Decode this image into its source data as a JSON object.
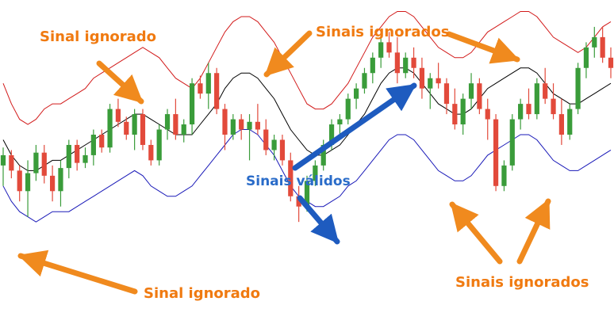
{
  "chart_data": {
    "type": "candlestick",
    "title": "",
    "xlabel": "",
    "ylabel": "",
    "ylim": [
      0,
      100
    ],
    "grid": false,
    "legend": "none",
    "colors": {
      "bullish": "#3a9c3a",
      "bearish": "#e24a3b",
      "upper_band": "#d21a1a",
      "middle_band": "#000000",
      "lower_band": "#1a1ab8",
      "annotation_orange": "#f08a1e",
      "annotation_blue": "#1e5bbf",
      "label_orange": "#f07a10",
      "label_blue": "#2a6cc9"
    },
    "candles": [
      {
        "o": 38,
        "h": 45,
        "l": 30,
        "c": 42
      },
      {
        "o": 42,
        "h": 44,
        "l": 33,
        "c": 36
      },
      {
        "o": 36,
        "h": 38,
        "l": 24,
        "c": 28
      },
      {
        "o": 28,
        "h": 40,
        "l": 18,
        "c": 35
      },
      {
        "o": 35,
        "h": 46,
        "l": 32,
        "c": 43
      },
      {
        "o": 43,
        "h": 46,
        "l": 31,
        "c": 34
      },
      {
        "o": 34,
        "h": 38,
        "l": 24,
        "c": 28
      },
      {
        "o": 28,
        "h": 40,
        "l": 22,
        "c": 37
      },
      {
        "o": 37,
        "h": 48,
        "l": 33,
        "c": 46
      },
      {
        "o": 46,
        "h": 48,
        "l": 36,
        "c": 39
      },
      {
        "o": 39,
        "h": 45,
        "l": 37,
        "c": 42
      },
      {
        "o": 42,
        "h": 52,
        "l": 38,
        "c": 50
      },
      {
        "o": 50,
        "h": 52,
        "l": 43,
        "c": 45
      },
      {
        "o": 45,
        "h": 62,
        "l": 43,
        "c": 60
      },
      {
        "o": 60,
        "h": 64,
        "l": 53,
        "c": 55
      },
      {
        "o": 55,
        "h": 57,
        "l": 48,
        "c": 50
      },
      {
        "o": 50,
        "h": 60,
        "l": 44,
        "c": 58
      },
      {
        "o": 58,
        "h": 60,
        "l": 44,
        "c": 46
      },
      {
        "o": 46,
        "h": 48,
        "l": 38,
        "c": 40
      },
      {
        "o": 40,
        "h": 54,
        "l": 38,
        "c": 52
      },
      {
        "o": 52,
        "h": 60,
        "l": 48,
        "c": 58
      },
      {
        "o": 58,
        "h": 64,
        "l": 48,
        "c": 50
      },
      {
        "o": 50,
        "h": 56,
        "l": 47,
        "c": 54
      },
      {
        "o": 54,
        "h": 72,
        "l": 50,
        "c": 70
      },
      {
        "o": 70,
        "h": 73,
        "l": 64,
        "c": 66
      },
      {
        "o": 66,
        "h": 78,
        "l": 60,
        "c": 74
      },
      {
        "o": 74,
        "h": 76,
        "l": 58,
        "c": 60
      },
      {
        "o": 60,
        "h": 62,
        "l": 44,
        "c": 50
      },
      {
        "o": 50,
        "h": 58,
        "l": 48,
        "c": 56
      },
      {
        "o": 56,
        "h": 58,
        "l": 48,
        "c": 52
      },
      {
        "o": 52,
        "h": 58,
        "l": 40,
        "c": 55
      },
      {
        "o": 55,
        "h": 62,
        "l": 50,
        "c": 52
      },
      {
        "o": 52,
        "h": 56,
        "l": 42,
        "c": 44
      },
      {
        "o": 44,
        "h": 50,
        "l": 40,
        "c": 48
      },
      {
        "o": 48,
        "h": 50,
        "l": 38,
        "c": 40
      },
      {
        "o": 40,
        "h": 43,
        "l": 24,
        "c": 26
      },
      {
        "o": 26,
        "h": 30,
        "l": 16,
        "c": 22
      },
      {
        "o": 22,
        "h": 34,
        "l": 20,
        "c": 32
      },
      {
        "o": 32,
        "h": 40,
        "l": 30,
        "c": 38
      },
      {
        "o": 38,
        "h": 48,
        "l": 36,
        "c": 46
      },
      {
        "o": 46,
        "h": 56,
        "l": 44,
        "c": 54
      },
      {
        "o": 54,
        "h": 58,
        "l": 50,
        "c": 56
      },
      {
        "o": 56,
        "h": 66,
        "l": 54,
        "c": 64
      },
      {
        "o": 64,
        "h": 70,
        "l": 60,
        "c": 68
      },
      {
        "o": 68,
        "h": 76,
        "l": 66,
        "c": 74
      },
      {
        "o": 74,
        "h": 82,
        "l": 70,
        "c": 80
      },
      {
        "o": 80,
        "h": 88,
        "l": 76,
        "c": 86
      },
      {
        "o": 86,
        "h": 90,
        "l": 80,
        "c": 82
      },
      {
        "o": 82,
        "h": 88,
        "l": 70,
        "c": 74
      },
      {
        "o": 74,
        "h": 82,
        "l": 72,
        "c": 80
      },
      {
        "o": 80,
        "h": 84,
        "l": 72,
        "c": 76
      },
      {
        "o": 76,
        "h": 80,
        "l": 64,
        "c": 68
      },
      {
        "o": 68,
        "h": 74,
        "l": 60,
        "c": 72
      },
      {
        "o": 72,
        "h": 78,
        "l": 68,
        "c": 70
      },
      {
        "o": 70,
        "h": 72,
        "l": 58,
        "c": 62
      },
      {
        "o": 62,
        "h": 68,
        "l": 52,
        "c": 54
      },
      {
        "o": 54,
        "h": 66,
        "l": 50,
        "c": 64
      },
      {
        "o": 64,
        "h": 74,
        "l": 60,
        "c": 70
      },
      {
        "o": 70,
        "h": 72,
        "l": 58,
        "c": 60
      },
      {
        "o": 60,
        "h": 64,
        "l": 48,
        "c": 56
      },
      {
        "o": 56,
        "h": 58,
        "l": 28,
        "c": 30
      },
      {
        "o": 30,
        "h": 40,
        "l": 28,
        "c": 38
      },
      {
        "o": 38,
        "h": 58,
        "l": 36,
        "c": 56
      },
      {
        "o": 56,
        "h": 64,
        "l": 52,
        "c": 62
      },
      {
        "o": 62,
        "h": 68,
        "l": 56,
        "c": 58
      },
      {
        "o": 58,
        "h": 72,
        "l": 56,
        "c": 70
      },
      {
        "o": 70,
        "h": 76,
        "l": 62,
        "c": 64
      },
      {
        "o": 64,
        "h": 70,
        "l": 56,
        "c": 58
      },
      {
        "o": 58,
        "h": 64,
        "l": 46,
        "c": 50
      },
      {
        "o": 50,
        "h": 62,
        "l": 48,
        "c": 60
      },
      {
        "o": 60,
        "h": 78,
        "l": 58,
        "c": 76
      },
      {
        "o": 76,
        "h": 86,
        "l": 72,
        "c": 84
      },
      {
        "o": 84,
        "h": 92,
        "l": 80,
        "c": 88
      },
      {
        "o": 88,
        "h": 92,
        "l": 78,
        "c": 80
      },
      {
        "o": 80,
        "h": 84,
        "l": 72,
        "c": 76
      }
    ],
    "upper_band": [
      70,
      62,
      56,
      54,
      56,
      60,
      62,
      62,
      64,
      66,
      68,
      72,
      74,
      76,
      78,
      80,
      82,
      84,
      82,
      80,
      76,
      72,
      70,
      68,
      72,
      78,
      84,
      90,
      94,
      96,
      96,
      94,
      90,
      86,
      80,
      74,
      68,
      62,
      60,
      60,
      62,
      66,
      70,
      76,
      82,
      88,
      92,
      96,
      98,
      98,
      96,
      92,
      88,
      84,
      82,
      80,
      80,
      82,
      86,
      90,
      92,
      94,
      96,
      98,
      98,
      96,
      92,
      88,
      86,
      84,
      82,
      84,
      88,
      92,
      94
    ],
    "middle_band": [
      48,
      42,
      38,
      36,
      36,
      38,
      40,
      40,
      42,
      44,
      46,
      48,
      50,
      52,
      54,
      56,
      58,
      58,
      56,
      54,
      52,
      50,
      50,
      50,
      54,
      58,
      62,
      68,
      72,
      74,
      74,
      72,
      68,
      64,
      58,
      52,
      48,
      44,
      42,
      42,
      44,
      46,
      50,
      54,
      58,
      64,
      70,
      74,
      76,
      76,
      74,
      70,
      66,
      62,
      60,
      58,
      58,
      60,
      64,
      68,
      70,
      72,
      74,
      76,
      76,
      74,
      70,
      66,
      64,
      62,
      62,
      64,
      66,
      68,
      70
    ],
    "lower_band": [
      30,
      24,
      20,
      18,
      16,
      18,
      20,
      20,
      20,
      22,
      24,
      26,
      28,
      30,
      32,
      34,
      36,
      34,
      30,
      28,
      26,
      26,
      28,
      30,
      34,
      38,
      42,
      46,
      50,
      52,
      52,
      50,
      46,
      42,
      36,
      30,
      26,
      24,
      22,
      22,
      24,
      26,
      30,
      32,
      36,
      40,
      44,
      48,
      50,
      50,
      48,
      44,
      40,
      36,
      34,
      32,
      32,
      34,
      38,
      42,
      44,
      46,
      48,
      50,
      50,
      48,
      44,
      40,
      38,
      36,
      36,
      38,
      40,
      42,
      44
    ],
    "annotations": [
      {
        "text": "Sinal ignorado",
        "color": "orange"
      },
      {
        "text": "Sinais ignorados",
        "color": "orange"
      },
      {
        "text": "Sinais válidos",
        "color": "blue"
      },
      {
        "text": "Sinal ignorado",
        "color": "orange"
      },
      {
        "text": "Sinais ignorados",
        "color": "orange"
      }
    ]
  }
}
